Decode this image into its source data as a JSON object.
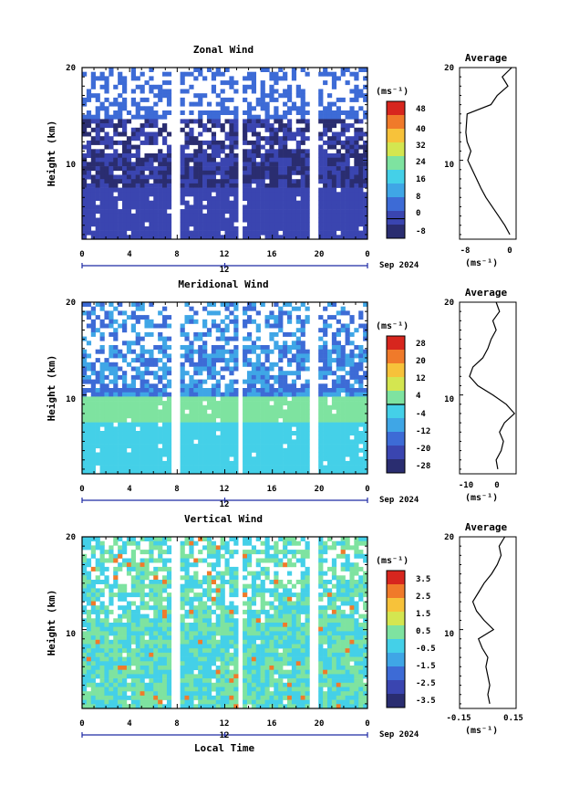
{
  "figure": {
    "date_label": "Sep 2024",
    "bottom_axis_label": "Local Time",
    "colorbar_unit": "(ms⁻¹)",
    "profile_unit": "(ms⁻¹)",
    "profile_title": "Average",
    "y_axis_label": "Height (km)",
    "mid_tick_label": "12",
    "colors": {
      "background": "#ffffff",
      "axis": "#000000",
      "axis_blue": "#1f2aa5",
      "colormap": [
        "#2a2d70",
        "#3a45b0",
        "#3d6bd6",
        "#3fa6e6",
        "#44d0e8",
        "#7ee3a0",
        "#d4e650",
        "#f7c23a",
        "#f07a2a",
        "#d7261e"
      ]
    }
  },
  "chart_data": [
    {
      "type": "heatmap",
      "title": "Zonal Wind",
      "xlabel": "",
      "ylabel": "Height (km)",
      "xlim": [
        0,
        24
      ],
      "ylim": [
        1.5,
        20
      ],
      "x_ticks": [
        "0",
        "4",
        "8",
        "12",
        "16",
        "20",
        "0"
      ],
      "y_ticks": [
        10,
        20
      ],
      "colorbar": {
        "unit": "(ms⁻¹)",
        "min": -8,
        "max": 48,
        "labels": [
          "48",
          "40",
          "32",
          "24",
          "16",
          "8",
          "0",
          "-8"
        ],
        "contour_level": 0
      },
      "data_gaps_hours": [
        [
          7.6,
          8.1
        ],
        [
          13.1,
          13.5
        ],
        [
          19.0,
          20.0
        ]
      ],
      "profile": {
        "title": "Average",
        "xlim": [
          -8,
          1
        ],
        "x_ticks": [
          "-8",
          "0"
        ],
        "heights": [
          2,
          3,
          4,
          5,
          6,
          7,
          8,
          9,
          10,
          11,
          12,
          13,
          14,
          15,
          16,
          17,
          18,
          19,
          20
        ],
        "values": [
          0.0,
          -0.8,
          -1.8,
          -2.8,
          -3.8,
          -4.6,
          -5.3,
          -6.0,
          -6.7,
          -6.2,
          -6.8,
          -7.0,
          -6.9,
          -6.8,
          -3.0,
          -2.0,
          -0.3,
          -1.2,
          0.3
        ]
      }
    },
    {
      "type": "heatmap",
      "title": "Meridional Wind",
      "xlabel": "",
      "ylabel": "Height (km)",
      "xlim": [
        0,
        24
      ],
      "ylim": [
        1.5,
        20
      ],
      "x_ticks": [
        "0",
        "4",
        "8",
        "12",
        "16",
        "20",
        "0"
      ],
      "y_ticks": [
        10,
        20
      ],
      "colorbar": {
        "unit": "(ms⁻¹)",
        "min": -28,
        "max": 28,
        "labels": [
          "28",
          "20",
          "12",
          "4",
          "-4",
          "-12",
          "-20",
          "-28"
        ],
        "contour_level": 0
      },
      "data_gaps_hours": [
        [
          7.6,
          8.1
        ],
        [
          13.1,
          13.5
        ],
        [
          19.0,
          20.0
        ]
      ],
      "profile": {
        "title": "Average",
        "xlim": [
          -13,
          4
        ],
        "x_ticks": [
          "-10",
          "0"
        ],
        "heights": [
          2,
          3,
          4,
          5,
          6,
          7,
          8,
          9,
          10,
          11,
          12,
          13,
          14,
          15,
          16,
          17,
          18,
          19,
          20
        ],
        "values": [
          -1.5,
          -2.0,
          -0.5,
          0.2,
          -1.0,
          0.5,
          3.5,
          1.0,
          -3.0,
          -7.5,
          -10.0,
          -9.0,
          -6.0,
          -4.5,
          -3.5,
          -2.0,
          -3.0,
          -1.0,
          -2.0
        ]
      }
    },
    {
      "type": "heatmap",
      "title": "Vertical Wind",
      "xlabel": "Local Time",
      "ylabel": "Height (km)",
      "xlim": [
        0,
        24
      ],
      "ylim": [
        1.5,
        20
      ],
      "x_ticks": [
        "0",
        "4",
        "8",
        "12",
        "16",
        "20",
        "0"
      ],
      "y_ticks": [
        10,
        20
      ],
      "colorbar": {
        "unit": "(ms⁻¹)",
        "min": -3.5,
        "max": 3.5,
        "labels": [
          "3.5",
          "2.5",
          "1.5",
          "0.5",
          "-0.5",
          "-1.5",
          "-2.5",
          "-3.5"
        ]
      },
      "data_gaps_hours": [
        [
          7.6,
          8.1
        ],
        [
          13.1,
          13.5
        ],
        [
          19.0,
          20.0
        ]
      ],
      "profile": {
        "title": "Average",
        "xlim": [
          -0.15,
          0.15
        ],
        "x_ticks": [
          "-0.15",
          "0.15"
        ],
        "heights": [
          2,
          3,
          4,
          5,
          6,
          7,
          8,
          9,
          10,
          11,
          12,
          13,
          14,
          15,
          16,
          17,
          18,
          19,
          20
        ],
        "values": [
          0.01,
          0.0,
          0.01,
          0.0,
          -0.01,
          0.0,
          -0.03,
          -0.05,
          0.03,
          -0.02,
          -0.06,
          -0.08,
          -0.05,
          -0.02,
          0.02,
          0.05,
          0.07,
          0.06,
          0.09
        ]
      }
    }
  ]
}
